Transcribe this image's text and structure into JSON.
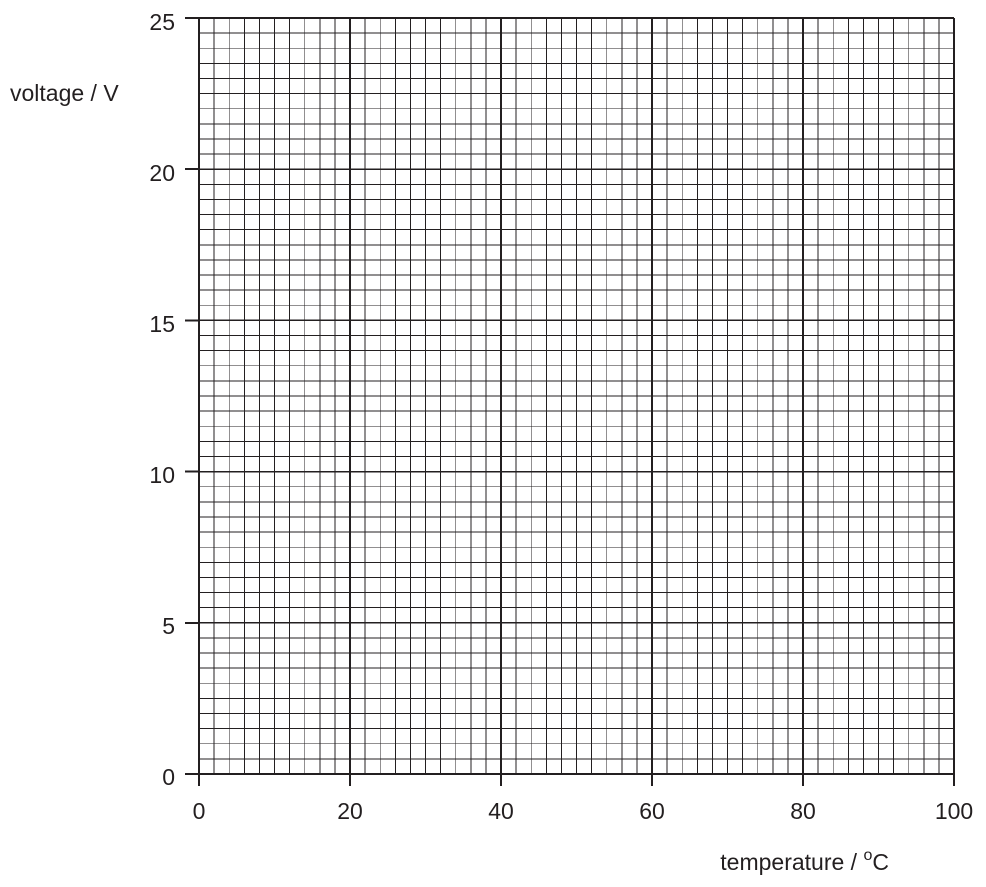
{
  "chart_data": {
    "type": "scatter",
    "title": "",
    "xlabel": "temperature / °C",
    "ylabel": "voltage / V",
    "xlabel_parts": {
      "before": "temperature / ",
      "sup": "o",
      "after": "C"
    },
    "xlim": [
      0,
      100
    ],
    "ylim": [
      0,
      25
    ],
    "xticks": [
      0,
      20,
      40,
      60,
      80,
      100
    ],
    "yticks": [
      0,
      5,
      10,
      15,
      20,
      25
    ],
    "x_tick_labels": [
      "0",
      "20",
      "40",
      "60",
      "80",
      "100"
    ],
    "y_tick_labels": [
      "0",
      "5",
      "10",
      "15",
      "20",
      "25"
    ],
    "grid": true,
    "grid_style": "graph paper: major every 20 °C / 5 V, minor every 2 °C / 0.5 V",
    "series": []
  },
  "colors": {
    "ink": "#231f20",
    "paper": "#ffffff"
  }
}
